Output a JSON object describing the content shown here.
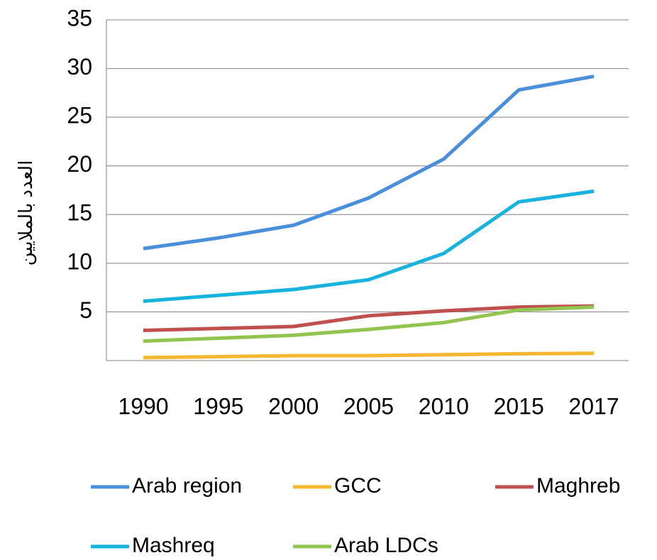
{
  "chart_data": {
    "type": "line",
    "y_label": "العدد بالملايين",
    "categories": [
      "1990",
      "1995",
      "2000",
      "2005",
      "2010",
      "2015",
      "2017"
    ],
    "series": [
      {
        "name": "Arab region",
        "color": "#4a8fdb",
        "values": [
          11.5,
          12.6,
          13.9,
          16.7,
          20.7,
          27.8,
          29.2
        ]
      },
      {
        "name": "GCC",
        "color": "#f5b731",
        "values": [
          0.3,
          0.4,
          0.5,
          0.5,
          0.6,
          0.7,
          0.75
        ]
      },
      {
        "name": "Maghreb",
        "color": "#c0504d",
        "values": [
          3.1,
          3.3,
          3.5,
          4.6,
          5.1,
          5.5,
          5.6
        ]
      },
      {
        "name": "Mashreq",
        "color": "#17b3de",
        "values": [
          6.1,
          6.7,
          7.3,
          8.3,
          11.0,
          16.3,
          17.4
        ]
      },
      {
        "name": "Arab LDCs",
        "color": "#92c54f",
        "values": [
          2.0,
          2.3,
          2.6,
          3.2,
          3.9,
          5.2,
          5.5
        ]
      }
    ],
    "ylim": [
      0,
      35
    ],
    "yticks": [
      5,
      10,
      15,
      20,
      25,
      30,
      35
    ],
    "grid": true,
    "legend": "bottom"
  }
}
